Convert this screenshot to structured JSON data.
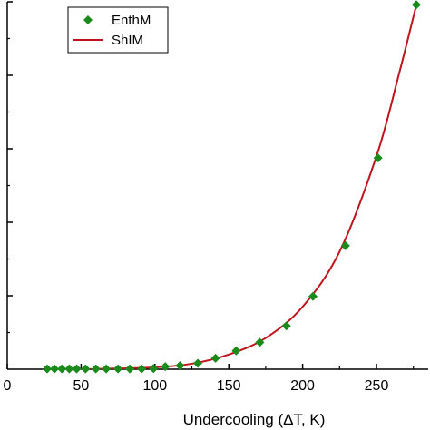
{
  "chart_data": {
    "type": "scatter",
    "title": "",
    "xlabel": "Undercooling (ΔT, K)",
    "ylabel": "",
    "xlim": [
      0,
      285
    ],
    "ylim": [
      0,
      100
    ],
    "x_ticks": [
      0,
      50,
      100,
      150,
      200,
      250
    ],
    "x_tick_labels": [
      "0",
      "50",
      "100",
      "150",
      "200",
      "250"
    ],
    "y_ticks": [
      20,
      40,
      60,
      80,
      100
    ],
    "grid": false,
    "legend": {
      "position": "top-left",
      "entries": [
        {
          "label": "EnthM",
          "marker": "diamond",
          "color": "#1a8a1a"
        },
        {
          "label": "ShIM",
          "marker": "line",
          "color": "#c0141c"
        }
      ]
    },
    "series": [
      {
        "name": "EnthM",
        "kind": "scatter",
        "color": "#1a8a1a",
        "x": [
          27,
          32,
          37,
          42,
          47,
          53,
          60,
          67,
          75,
          83,
          91,
          99,
          107,
          117,
          129,
          141,
          155,
          171,
          189,
          207,
          229,
          251,
          277
        ],
        "y": [
          0.1,
          0.1,
          0.1,
          0.1,
          0.1,
          0.1,
          0.1,
          0.1,
          0.1,
          0.1,
          0.1,
          0.2,
          0.7,
          1.0,
          1.6,
          3.0,
          5.0,
          7.3,
          11.8,
          19.8,
          33.6,
          57.5,
          99.2
        ]
      },
      {
        "name": "ShIM",
        "kind": "line",
        "color": "#c0141c",
        "x": [
          25,
          50,
          75,
          100,
          125,
          150,
          175,
          200,
          225,
          250,
          265,
          280
        ],
        "y": [
          0,
          0,
          0.2,
          0.5,
          1.5,
          4.0,
          8.5,
          17.0,
          32.0,
          58.0,
          80.0,
          104.0
        ]
      }
    ]
  }
}
